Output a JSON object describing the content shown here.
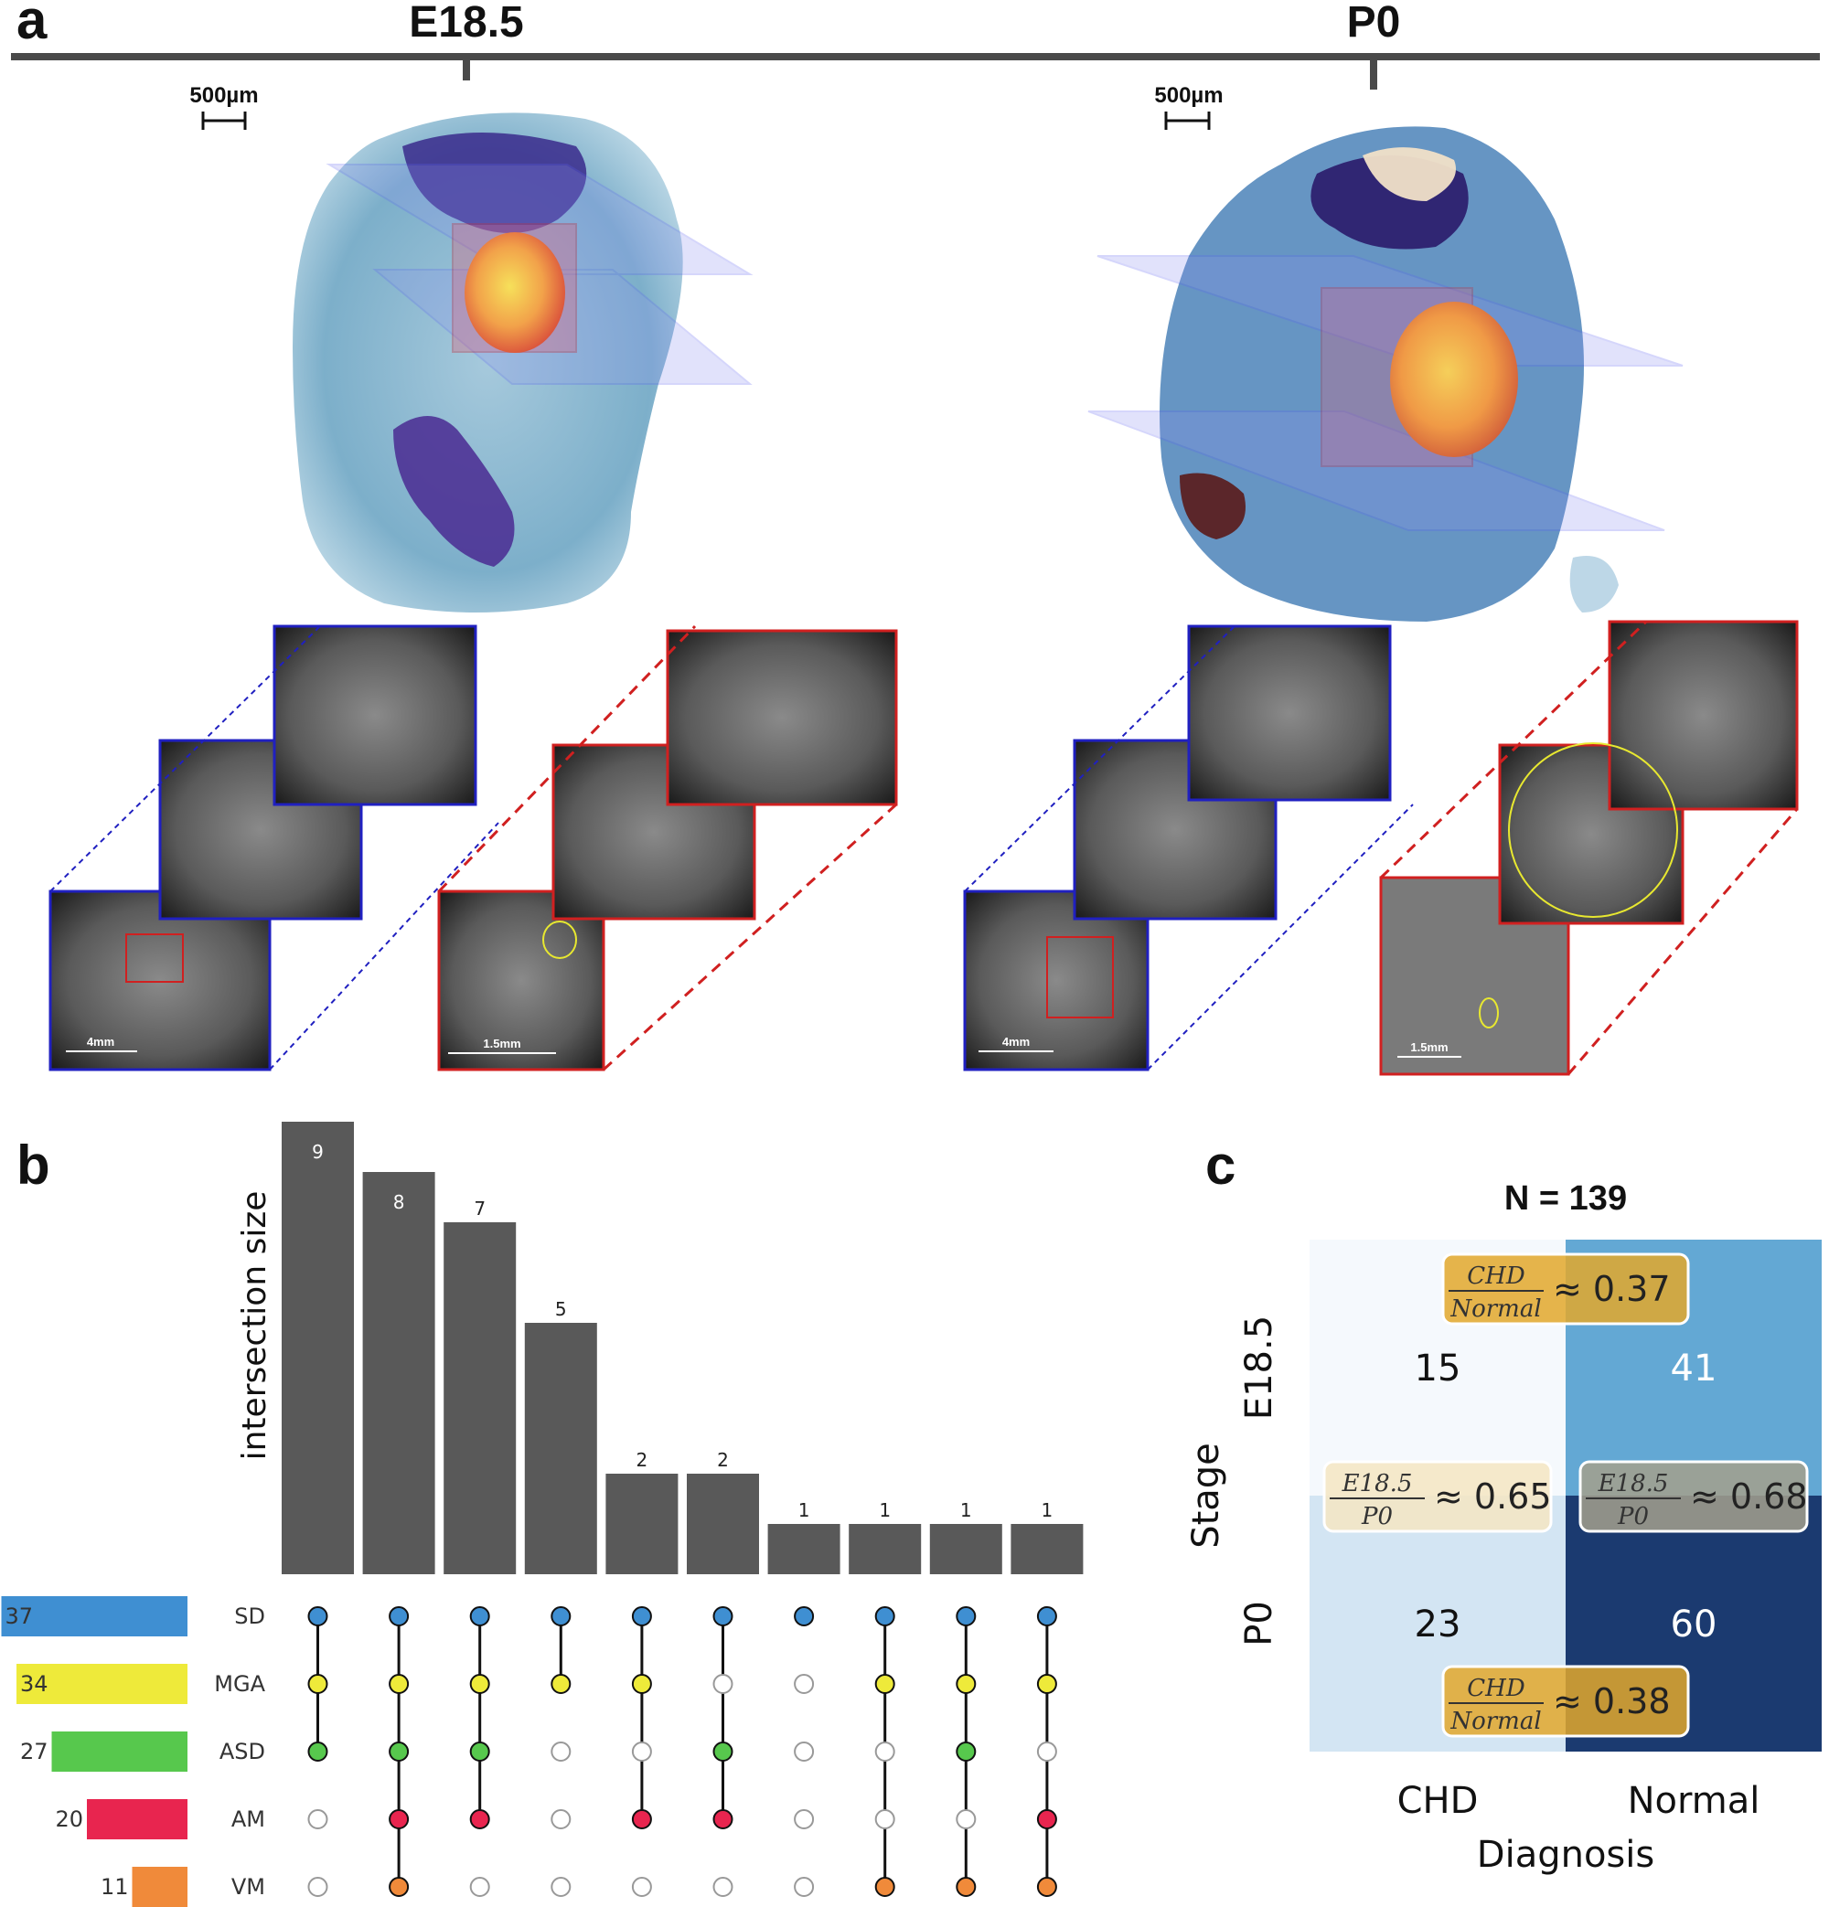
{
  "panel_a": {
    "letter": "a",
    "timeline": [
      "E18.5",
      "P0"
    ],
    "scale_bar_large": "500µm",
    "scale_bar_stack_left": "4mm",
    "scale_bar_stack_right": "1.5mm"
  },
  "panel_b": {
    "letter": "b",
    "chart_data": {
      "type": "bar",
      "ylabel": "intersection size",
      "intersections": [
        {
          "value": 9,
          "sets": [
            "SD",
            "MGA",
            "ASD"
          ]
        },
        {
          "value": 8,
          "sets": [
            "SD",
            "MGA",
            "ASD",
            "AM",
            "VM"
          ]
        },
        {
          "value": 7,
          "sets": [
            "SD",
            "MGA",
            "ASD",
            "AM"
          ]
        },
        {
          "value": 5,
          "sets": [
            "SD",
            "MGA"
          ]
        },
        {
          "value": 2,
          "sets": [
            "SD",
            "MGA",
            "AM"
          ]
        },
        {
          "value": 2,
          "sets": [
            "SD",
            "ASD",
            "AM"
          ]
        },
        {
          "value": 1,
          "sets": [
            "SD"
          ]
        },
        {
          "value": 1,
          "sets": [
            "SD",
            "MGA",
            "VM"
          ]
        },
        {
          "value": 1,
          "sets": [
            "SD",
            "MGA",
            "ASD",
            "VM"
          ]
        },
        {
          "value": 1,
          "sets": [
            "SD",
            "MGA",
            "AM",
            "VM"
          ]
        }
      ],
      "set_sizes": [
        {
          "name": "SD",
          "value": 37,
          "color": "#3f8fd2"
        },
        {
          "name": "MGA",
          "value": 34,
          "color": "#eeea3a"
        },
        {
          "name": "ASD",
          "value": 27,
          "color": "#57c84d"
        },
        {
          "name": "AM",
          "value": 20,
          "color": "#e8254f"
        },
        {
          "name": "VM",
          "value": 11,
          "color": "#f08a3a"
        }
      ]
    }
  },
  "panel_c": {
    "letter": "c",
    "chart_data": {
      "type": "heatmap",
      "title": "N = 139",
      "xlabel": "Diagnosis",
      "ylabel": "Stage",
      "x_categories": [
        "CHD",
        "Normal"
      ],
      "y_categories": [
        "E18.5",
        "P0"
      ],
      "values": [
        [
          15,
          41
        ],
        [
          23,
          60
        ]
      ],
      "colors": [
        [
          "#f5f9fd",
          "#63a8d4"
        ],
        [
          "#d3e5f3",
          "#1b3a70"
        ]
      ],
      "text_colors": [
        [
          "#111111",
          "#ffffff"
        ],
        [
          "#111111",
          "#ffffff"
        ]
      ],
      "annotations": [
        {
          "numerator": "CHD",
          "denominator": "Normal",
          "approx": "≈ 0.37",
          "row": "E18.5",
          "color": "#e2a82b"
        },
        {
          "numerator": "CHD",
          "denominator": "Normal",
          "approx": "≈ 0.38",
          "row": "P0",
          "color": "#e2a82b"
        },
        {
          "numerator": "E18.5",
          "denominator": "P0",
          "approx": "≈ 0.65",
          "column": "CHD",
          "color": "#f5e6c2"
        },
        {
          "numerator": "E18.5",
          "denominator": "P0",
          "approx": "≈ 0.68",
          "column": "Normal",
          "color": "#a3a08c"
        }
      ]
    }
  }
}
